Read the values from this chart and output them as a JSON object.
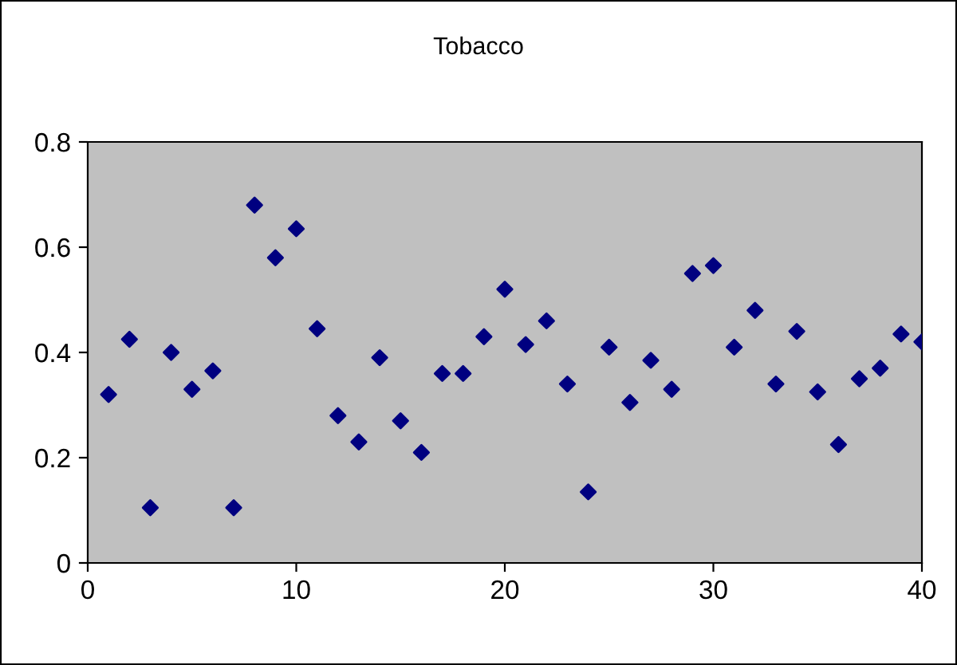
{
  "chart_data": {
    "type": "scatter",
    "title": "Tobacco",
    "marker": "diamond",
    "grid": false,
    "legend": false,
    "x": [
      1,
      2,
      3,
      4,
      5,
      6,
      7,
      8,
      9,
      10,
      11,
      12,
      13,
      14,
      15,
      16,
      17,
      18,
      19,
      20,
      21,
      22,
      23,
      24,
      25,
      26,
      27,
      28,
      29,
      30,
      31,
      32,
      33,
      34,
      35,
      36,
      37,
      38,
      39,
      40
    ],
    "series": [
      {
        "color": "#000080",
        "values": [
          0.32,
          0.425,
          0.105,
          0.4,
          0.33,
          0.365,
          0.105,
          0.68,
          0.58,
          0.635,
          0.445,
          0.28,
          0.23,
          0.39,
          0.27,
          0.21,
          0.36,
          0.36,
          0.43,
          0.52,
          0.415,
          0.46,
          0.34,
          0.135,
          0.41,
          0.305,
          0.385,
          0.33,
          0.55,
          0.565,
          0.41,
          0.48,
          0.34,
          0.44,
          0.325,
          0.225,
          0.35,
          0.37,
          0.435,
          0.42
        ]
      }
    ],
    "xlim": [
      0,
      40
    ],
    "xticks": [
      0,
      10,
      20,
      30,
      40
    ],
    "ylim": [
      0,
      0.8
    ],
    "yticks": [
      {
        "value": 0,
        "label": "0"
      },
      0.2,
      0.4,
      0.6,
      0.8
    ]
  }
}
